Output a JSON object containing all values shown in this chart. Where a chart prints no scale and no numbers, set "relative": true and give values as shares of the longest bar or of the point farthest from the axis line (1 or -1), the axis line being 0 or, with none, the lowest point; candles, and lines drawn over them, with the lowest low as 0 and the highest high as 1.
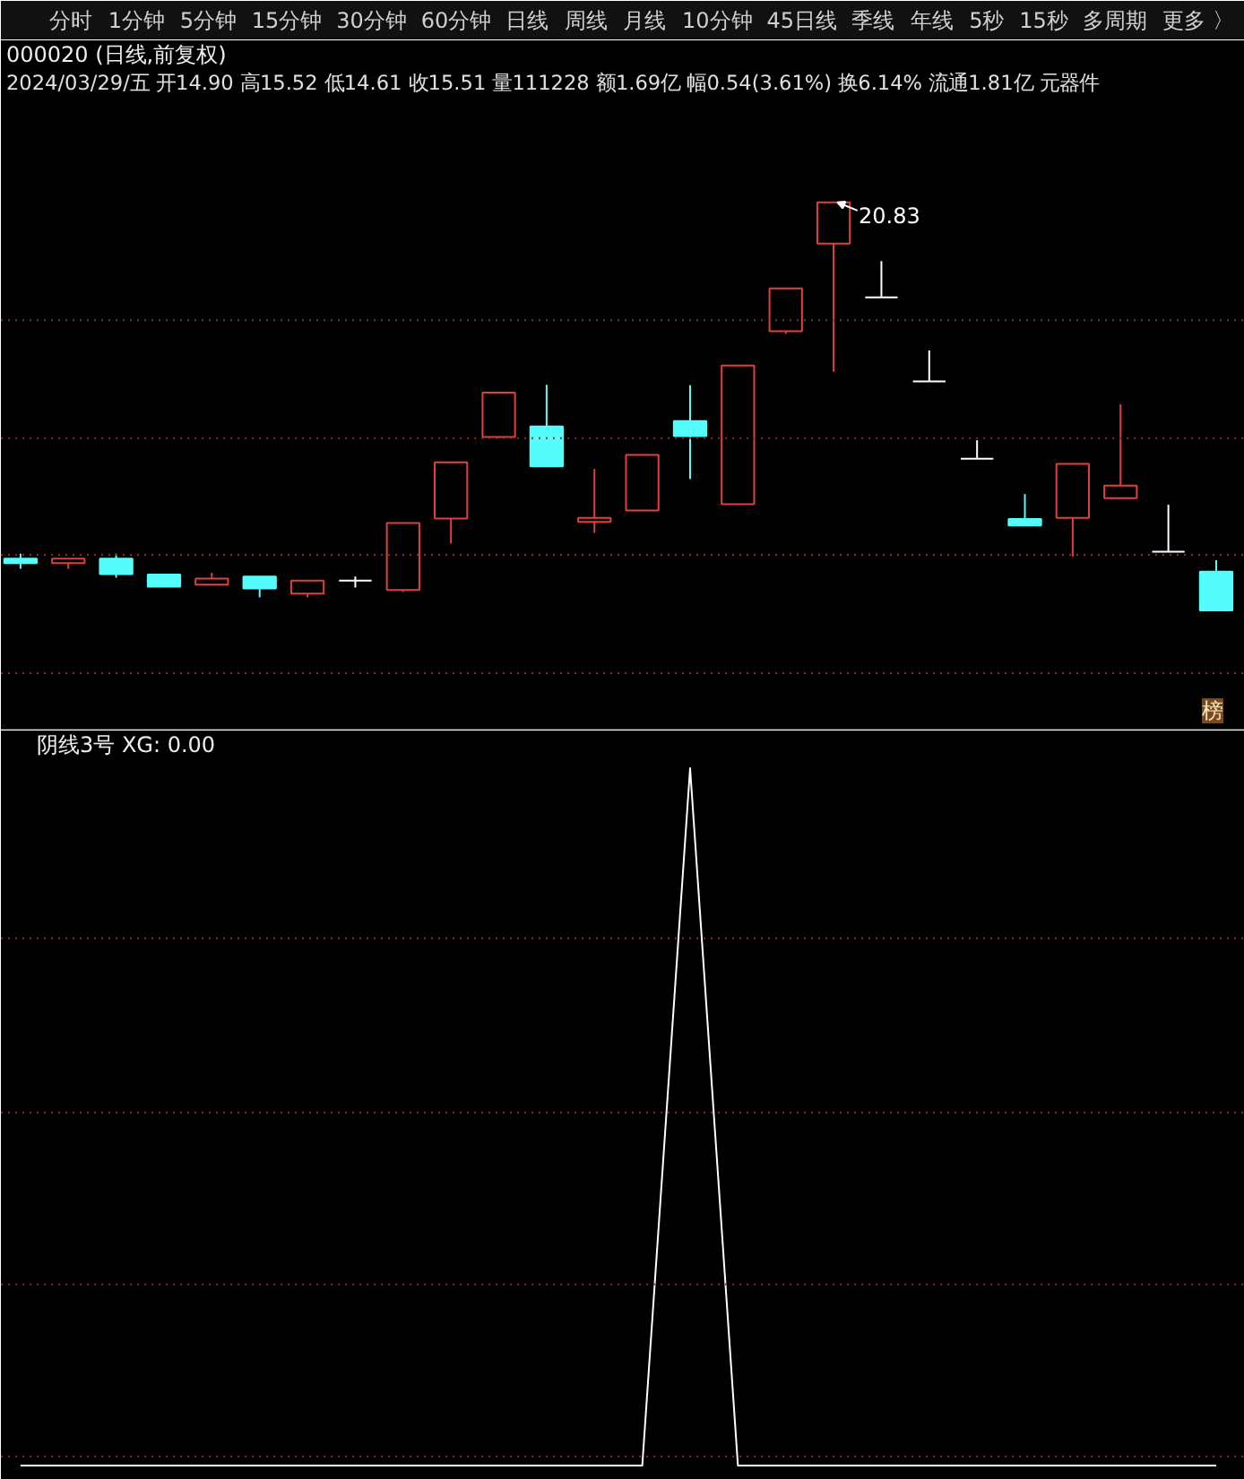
{
  "chart_data": [
    {
      "type": "other",
      "annotations": [
        "分时",
        "1分钟",
        "5分钟",
        "15分钟",
        "30分钟",
        "60分钟",
        "日线",
        "周线",
        "月线",
        "10分钟",
        "45日线",
        "季线",
        "年线",
        "5秒",
        "15秒",
        "多周期",
        "更多 〉"
      ]
    },
    {
      "type": "candlestick",
      "title": "000020 (日线,前复权)",
      "subtitle": "2024/03/29/五 开14.90 高15.52 低14.61 收15.51 量111228 额1.69亿 幅0.54(3.61%) 换6.14% 流通1.81亿 元器件",
      "categories": [
        null,
        null,
        null,
        null,
        null,
        null,
        null,
        null,
        null,
        null,
        null,
        null,
        null,
        null,
        null,
        null,
        null,
        null,
        null,
        null,
        null,
        null,
        null,
        null,
        null,
        null
      ],
      "ohlc": [
        [
          0.127,
          0.139,
          0.102,
          0.116
        ],
        [
          0.116,
          0.127,
          0.102,
          0.127
        ],
        [
          0.127,
          0.139,
          0.08,
          0.089
        ],
        [
          0.088,
          0.088,
          0.058,
          0.058
        ],
        [
          0.063,
          0.092,
          0.063,
          0.078
        ],
        [
          0.083,
          0.083,
          0.032,
          0.054
        ],
        [
          0.041,
          0.073,
          0.032,
          0.073
        ],
        [
          0.073,
          0.083,
          0.056,
          0.073
        ],
        [
          0.05,
          0.214,
          0.045,
          0.214
        ],
        [
          0.225,
          0.363,
          0.164,
          0.363
        ],
        [
          0.425,
          0.534,
          0.422,
          0.534
        ],
        [
          0.451,
          0.553,
          0.353,
          0.353
        ],
        [
          0.217,
          0.347,
          0.19,
          0.227
        ],
        [
          0.245,
          0.381,
          0.245,
          0.381
        ],
        [
          0.464,
          0.552,
          0.322,
          0.427
        ],
        [
          0.26,
          0.6,
          0.26,
          0.6
        ],
        [
          0.684,
          0.789,
          0.678,
          0.789
        ],
        [
          0.899,
          1.0,
          0.585,
          1.0
        ],
        [
          0.767,
          0.856,
          0.767,
          0.767
        ],
        [
          0.561,
          0.637,
          0.561,
          0.561
        ],
        [
          0.372,
          0.417,
          0.372,
          0.372
        ],
        [
          0.224,
          0.285,
          0.208,
          0.208
        ],
        [
          0.227,
          0.359,
          0.132,
          0.359
        ],
        [
          0.275,
          0.505,
          0.275,
          0.306
        ],
        [
          0.144,
          0.259,
          0.144,
          0.144
        ],
        [
          0.095,
          0.123,
          0,
          0
        ]
      ],
      "colors": [
        "#54fcfc",
        "#e0403c",
        "#54fcfc",
        "#54fcfc",
        "#e0403c",
        "#54fcfc",
        "#e0403c",
        "#ffffff",
        "#e0403c",
        "#e0403c",
        "#e0403c",
        "#54fcfc",
        "#e0403c",
        "#e0403c",
        "#54fcfc",
        "#e0403c",
        "#e0403c",
        "#e0403c",
        "#ffffff",
        "#ffffff",
        "#ffffff",
        "#54fcfc",
        "#e0403c",
        "#e0403c",
        "#ffffff",
        "#54fcfc"
      ],
      "relative": true,
      "ref_lines": [
        {
          "axis": "y",
          "value": 0.711,
          "color": "#8a2c2c",
          "line_style": "dotted"
        },
        {
          "axis": "y",
          "value": 0.422,
          "color": "#8a2c2c",
          "line_style": "dotted"
        },
        {
          "axis": "y",
          "value": 0.136,
          "color": "#8a2c2c",
          "line_style": "dotted"
        },
        {
          "axis": "y",
          "value": -0.154,
          "color": "#8a2c2c",
          "line_style": "dotted"
        }
      ],
      "annotations": [
        "20.83",
        "榜"
      ]
    },
    {
      "type": "line",
      "title": "阴线3号 XG: 0.00",
      "categories": [
        null,
        null,
        null,
        null,
        null,
        null,
        null,
        null,
        null,
        null,
        null,
        null,
        null,
        null,
        null,
        null,
        null,
        null,
        null,
        null,
        null,
        null,
        null,
        null,
        null,
        null
      ],
      "series": [
        {
          "color": "#ffffff",
          "values": [
            0,
            0,
            0,
            0,
            0,
            0,
            0,
            0,
            0,
            0,
            0,
            0,
            0,
            0,
            1,
            0,
            0,
            0,
            0,
            0,
            0,
            0,
            0,
            0,
            0,
            0
          ]
        }
      ],
      "relative": true,
      "ref_lines": [
        {
          "axis": "y",
          "value": 0.756,
          "color": "#8a2c2c",
          "line_style": "dotted"
        },
        {
          "axis": "y",
          "value": 0.506,
          "color": "#8a2c2c",
          "line_style": "dotted"
        },
        {
          "axis": "y",
          "value": 0.26,
          "color": "#8a2c2c",
          "line_style": "dotted"
        },
        {
          "axis": "y",
          "value": 0.013,
          "color": "#8a2c2c",
          "line_style": "dotted"
        }
      ]
    }
  ]
}
